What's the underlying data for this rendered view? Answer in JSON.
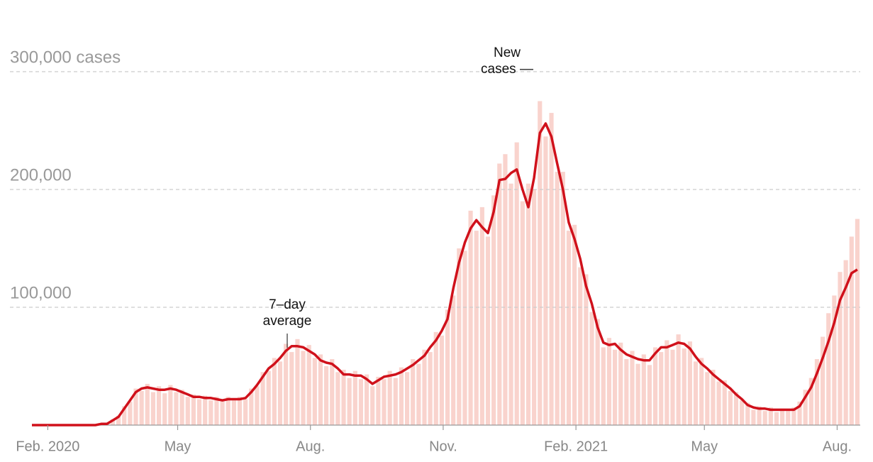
{
  "chart_data": {
    "type": "bar",
    "x": [
      0,
      4,
      8,
      12,
      16,
      20,
      24,
      28,
      32,
      36,
      40,
      44,
      48,
      52,
      56,
      60,
      64,
      68,
      72,
      76,
      80,
      84,
      88,
      92,
      96,
      100,
      104,
      108,
      112,
      116,
      120,
      124,
      128,
      132,
      136,
      140,
      144,
      148,
      152,
      156,
      160,
      164,
      168,
      172,
      176,
      180,
      184,
      188,
      192,
      196,
      200,
      204,
      208,
      212,
      216,
      220,
      224,
      228,
      232,
      236,
      240,
      244,
      248,
      252,
      256,
      260,
      264,
      268,
      272,
      276,
      280,
      284,
      288,
      292,
      296,
      300,
      304,
      308,
      312,
      316,
      320,
      324,
      328,
      332,
      336,
      340,
      344,
      348,
      352,
      356,
      360,
      364,
      368,
      372,
      376,
      380,
      384,
      388,
      392,
      396,
      400,
      404,
      408,
      412,
      416,
      420,
      424,
      428,
      432,
      436,
      440,
      444,
      448,
      452,
      456,
      460,
      464,
      468,
      472,
      476,
      480,
      484,
      488,
      492,
      496,
      500,
      504,
      508,
      512,
      516,
      520,
      524,
      528,
      532,
      536,
      540,
      544,
      548,
      552,
      556,
      560,
      564,
      568,
      572
    ],
    "series": [
      {
        "type": "bar",
        "color": "#f9d3cd",
        "values": [
          0,
          0,
          0,
          0,
          0,
          0,
          0,
          0,
          0,
          0,
          0,
          0,
          1500,
          800,
          5000,
          8000,
          16000,
          20000,
          31000,
          29000,
          35000,
          28000,
          33000,
          27000,
          34000,
          28000,
          30000,
          24000,
          26000,
          22000,
          25000,
          21000,
          24000,
          20000,
          24000,
          21000,
          24000,
          22000,
          31000,
          33000,
          45000,
          46000,
          57000,
          54000,
          69000,
          62000,
          73000,
          63000,
          68000,
          57000,
          60000,
          50000,
          56000,
          45000,
          47000,
          40000,
          46000,
          39000,
          43000,
          33000,
          41000,
          39000,
          46000,
          40000,
          49000,
          45000,
          56000,
          52000,
          64000,
          62000,
          79000,
          76000,
          98000,
          110000,
          150000,
          148000,
          182000,
          165000,
          185000,
          160000,
          195000,
          222000,
          230000,
          205000,
          240000,
          190000,
          205000,
          200000,
          275000,
          245000,
          265000,
          215000,
          215000,
          165000,
          170000,
          134000,
          128000,
          96000,
          90000,
          66000,
          74000,
          64000,
          70000,
          56000,
          63000,
          52000,
          60000,
          51000,
          66000,
          62000,
          72000,
          64000,
          77000,
          65000,
          71000,
          54000,
          57000,
          45000,
          47000,
          37000,
          38000,
          29000,
          28000,
          21000,
          19000,
          13000,
          16000,
          12000,
          15000,
          11000,
          14000,
          12000,
          15000,
          20000,
          30000,
          40000,
          56000,
          75000,
          95000,
          110000,
          130000,
          140000,
          160000,
          175000
        ]
      },
      {
        "type": "line",
        "color": "#d0111b",
        "values": [
          0,
          0,
          0,
          0,
          0,
          0,
          0,
          0,
          0,
          0,
          0,
          0,
          1000,
          1000,
          4000,
          7000,
          14000,
          21000,
          28000,
          31000,
          32000,
          31000,
          30000,
          30000,
          31000,
          30000,
          28000,
          26000,
          24000,
          24000,
          23000,
          23000,
          22000,
          21000,
          22000,
          22000,
          22000,
          23000,
          28000,
          34000,
          41000,
          48000,
          52000,
          57000,
          63000,
          67000,
          67000,
          66000,
          63000,
          60000,
          55000,
          53000,
          52000,
          48000,
          43000,
          43000,
          42000,
          42000,
          39000,
          35000,
          38000,
          41000,
          42000,
          43000,
          45000,
          48000,
          51000,
          55000,
          59000,
          66000,
          72000,
          80000,
          90000,
          116000,
          138000,
          155000,
          167000,
          174000,
          168000,
          163000,
          181000,
          208000,
          209000,
          214000,
          217000,
          200000,
          185000,
          210000,
          248000,
          256000,
          245000,
          222000,
          200000,
          172000,
          158000,
          141000,
          118000,
          103000,
          83000,
          70000,
          68000,
          69000,
          64000,
          60000,
          58000,
          56000,
          55000,
          55000,
          61000,
          66000,
          66000,
          68000,
          70000,
          69000,
          65000,
          58000,
          52000,
          48000,
          43000,
          39000,
          35000,
          31000,
          26000,
          22000,
          17000,
          15000,
          14000,
          14000,
          13000,
          13000,
          13000,
          13000,
          13000,
          16000,
          24000,
          32000,
          44000,
          57000,
          71000,
          87000,
          106000,
          117000,
          129000,
          132000
        ]
      }
    ],
    "xlim": [
      0,
      574
    ],
    "xticks": [
      {
        "value": 11,
        "label": "Feb. 2020"
      },
      {
        "value": 101,
        "label": "May"
      },
      {
        "value": 193,
        "label": "Aug."
      },
      {
        "value": 285,
        "label": "Nov."
      },
      {
        "value": 377,
        "label": "Feb. 2021"
      },
      {
        "value": 466,
        "label": "May"
      },
      {
        "value": 558,
        "label": "Aug."
      }
    ],
    "ylim": [
      0,
      300000
    ],
    "yticks": [
      {
        "value": 100000,
        "label": "100,000"
      },
      {
        "value": 200000,
        "label": "200,000"
      },
      {
        "value": 300000,
        "label": "300,000 cases"
      }
    ],
    "grid": true,
    "annotations": [
      [
        "7–day",
        "average"
      ],
      [
        "New",
        "cases —"
      ]
    ]
  }
}
